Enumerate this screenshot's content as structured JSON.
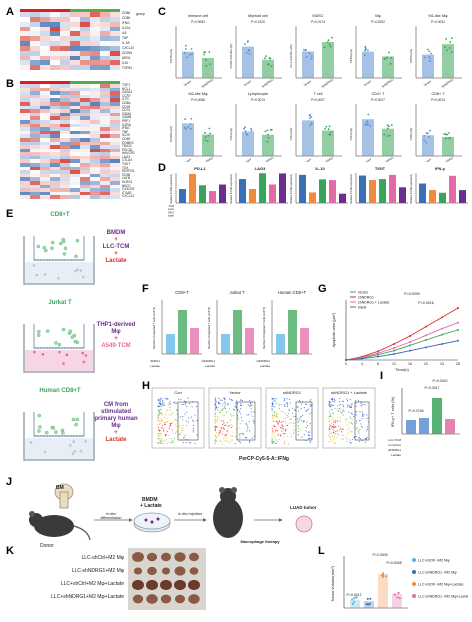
{
  "panels": {
    "A": "A",
    "B": "B",
    "C": "C",
    "D": "D",
    "E": "E",
    "F": "F",
    "G": "G",
    "H": "H",
    "I": "I",
    "J": "J",
    "K": "K",
    "L": "L"
  },
  "heatmap_A": {
    "legend_title": "group",
    "legend_items": [
      "Vector",
      "shNDRG1"
    ],
    "genes": [
      "CD86",
      "CD80",
      "IFNG",
      "IL12A",
      "IL6",
      "TNF",
      "IL-1B",
      "CXCL10",
      "CD206",
      "ARG1",
      "IL10",
      "TGFB1"
    ]
  },
  "heatmap_B": {
    "legend_title": "group",
    "genes": [
      "TGF1",
      "NCL1",
      "GATA3",
      "CCR7",
      "IL7R",
      "CD8A",
      "CD28",
      "CD74",
      "GZMA",
      "GZMB",
      "PRF1",
      "IL2RA",
      "IFNG",
      "TNF",
      "ICOS",
      "CD69",
      "EOMES",
      "TBX21",
      "PDCD1",
      "HAVCR2",
      "LAG3",
      "CTLA4",
      "TIGIT",
      "TOX",
      "ENTPD1",
      "CD38",
      "LAYN",
      "KLRG1",
      "NKG7",
      "CX3CR1",
      "ITGAE",
      "CXCL13"
    ]
  },
  "panel_C": {
    "plots": [
      {
        "title": "Immune cell",
        "p": "P=0.0083",
        "ylabel": "CD45+(%)"
      },
      {
        "title": "Myeloid cell",
        "p": "P=0.2220",
        "ylabel": "CD45+CD11b+(%)"
      },
      {
        "title": "MDSC",
        "p": "P=0.0174",
        "ylabel": "Gr-1+CD11b+(%)"
      },
      {
        "title": "Mφ",
        "p": "P=0.0292",
        "ylabel": "F4/80+(%)"
      },
      {
        "title": "M1-like Mφ",
        "p": "P=0.0031",
        "ylabel": "CD86+(%)"
      },
      {
        "title": "M2-like Mφ",
        "p": "P=0.0086",
        "ylabel": "CD206+(%)"
      },
      {
        "title": "Lymphocyte",
        "p": "P=0.0013",
        "ylabel": "CD3+(%)"
      },
      {
        "title": "T cell",
        "p": "P=0.0007",
        "ylabel": "CD3+(%)"
      },
      {
        "title": "CD4+ T",
        "p": "P=0.0027",
        "ylabel": "CD4+(%)"
      },
      {
        "title": "CD8+ T",
        "p": "P=0.0013",
        "ylabel": "CD8+(%)"
      }
    ],
    "x_groups": [
      "Vector",
      "shNDRG1"
    ]
  },
  "panel_D": {
    "plots": [
      {
        "title": "PD-L1",
        "ylabel": "Relative mRNA expression"
      },
      {
        "title": "LAG3",
        "ylabel": "Relative mRNA expression"
      },
      {
        "title": "IL-10",
        "ylabel": "Relative mRNA expression"
      },
      {
        "title": "TIGIT",
        "ylabel": "Relative mRNA expression"
      },
      {
        "title": "IFN-γ",
        "ylabel": "Relative mRNA expression"
      }
    ],
    "legend": [
      "Vector",
      "shNDRG1",
      "shNDRG1 + Lactate",
      "blank"
    ],
    "row_labels": [
      "A549-TCM",
      "A549-Vector",
      "A549-shNDRG1",
      "Lactate"
    ]
  },
  "panel_E": {
    "row1_cell": "CD8+T",
    "row1_text": [
      "BMDM",
      "+",
      "LLC-TCM",
      "+",
      "Lactate"
    ],
    "row2_cell": "Jurkat T",
    "row2_text": [
      "THP1-derived",
      "Mφ",
      "+",
      "A549-TCM"
    ],
    "row3_cell": "Human CD8+T",
    "row3_text": [
      "CM from",
      "stimulated",
      "primary human",
      "Mφ",
      "+",
      "Lactate"
    ]
  },
  "panel_F": {
    "plots": [
      {
        "title": "CD8+T",
        "ylabel": "Number of migrated T cells (x10^4)"
      },
      {
        "title": "Jurkat T",
        "ylabel": "Number of migrated T cells (x10^4)"
      },
      {
        "title": "Human CD8+T",
        "ylabel": "Number of migrated T cells (x10^4)"
      }
    ],
    "row_labels": [
      "shNDRG1",
      "Lactate"
    ]
  },
  "panel_G": {
    "legend": [
      "Vector",
      "shNDRG1",
      "shNDRG1 + Lactate",
      "blank"
    ],
    "p1": "P=0.0090",
    "p2": "P=0.0016",
    "xlabel": "Time(h)",
    "ylabel": "Apoptotic area (μm²)",
    "xticks": [
      "0",
      "4",
      "8",
      "12",
      "16",
      "20",
      "24",
      "28"
    ]
  },
  "chart_data": {
    "type": "line",
    "x": [
      0,
      4,
      8,
      12,
      16,
      20,
      24,
      28
    ],
    "series": [
      {
        "name": "Vector",
        "values": [
          0,
          0.3,
          0.8,
          1.4,
          2.2,
          3.0,
          3.8,
          4.5
        ]
      },
      {
        "name": "shNDRG1",
        "values": [
          0,
          0.5,
          1.3,
          2.4,
          3.6,
          5.0,
          6.4,
          7.8
        ]
      },
      {
        "name": "shNDRG1 + Lactate",
        "values": [
          0,
          0.4,
          1.0,
          1.8,
          2.7,
          3.7,
          4.7,
          5.6
        ]
      },
      {
        "name": "blank",
        "values": [
          0,
          0.2,
          0.5,
          0.9,
          1.4,
          1.9,
          2.4,
          2.9
        ]
      }
    ],
    "xlabel": "Time(h)",
    "ylabel": "Apoptotic area (μm²)",
    "ylim": [
      0,
      9
    ]
  },
  "panel_H": {
    "titles": [
      "Con",
      "Vector",
      "shNDRG1",
      "shNDRG1 + Lactate"
    ],
    "xlabel": "PerCP-Cy5-5-A::IFNg"
  },
  "panel_I": {
    "ylabel": "IFN-γ+ T cells (%)",
    "p1": "P=0.0042",
    "p2": "P=0.0017",
    "p3": "P=0.3746",
    "row_labels": [
      "LLC-TCM",
      "LLC-Vector",
      "LLC-shNDRG1",
      "Lactate"
    ]
  },
  "panel_J": {
    "bm": "BM",
    "donor": "Donor",
    "step1": "In vitro differentiation",
    "bmdm": "BMDM",
    "plus_lactate": "+ Lactate",
    "step2": "In vitro injection",
    "tumor": "LUAD tumor",
    "therapy": "Macrophage therapy"
  },
  "panel_K": {
    "rows": [
      "LLC-shCtrl+M2 Mφ",
      "LLC-shNDRG1+M2 Mφ",
      "LLC+shCtrl+M2 Mφ+Lactate",
      "LLC+shNDRG1+M2 Mφ+Lactate"
    ]
  },
  "panel_L": {
    "ylabel": "Tumor volume(mm³)",
    "p_top": "P=0.0005",
    "p_mid": "P=0.0048",
    "p_low": "P=0.0012",
    "p_low2": "P=0.0103",
    "legend": [
      "LLC-shCtrl +M2 Mφ",
      "LLC-shNDRG1 +M2 Mφ",
      "LLC-shCtrl +M2 Mφ+Lactate",
      "LLC-shNDRG1 +M2 Mφ+Lactate"
    ]
  },
  "colors": {
    "blue": "#3b6fb6",
    "green": "#3aa45a",
    "purple": "#6b2d8f",
    "pink": "#e46aa6",
    "orange": "#f08a3c",
    "lightblue": "#5ab4e5",
    "red": "#d7302b",
    "heat_red": "#d73027",
    "heat_blue": "#4575b4"
  }
}
